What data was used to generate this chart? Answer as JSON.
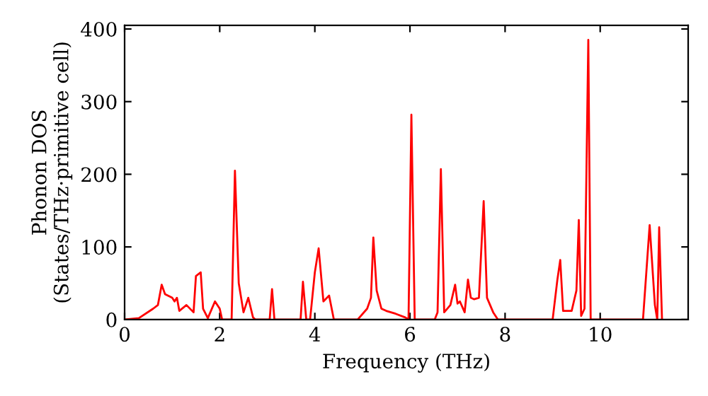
{
  "chart_data": {
    "type": "line",
    "xlabel": "Frequency (THz)",
    "ylabel": "Phonon DOS\n(States/THz·primitive cell)",
    "xlim": [
      0,
      11.85
    ],
    "ylim": [
      0,
      405
    ],
    "xticks": [
      0,
      2,
      4,
      6,
      8,
      10
    ],
    "yticks": [
      0,
      100,
      200,
      300,
      400
    ],
    "grid": false,
    "marker": "none",
    "line_style": "solid",
    "series": [
      {
        "color": "#ff0000",
        "x": [
          0,
          0.3,
          0.6,
          0.7,
          0.78,
          0.85,
          1.0,
          1.05,
          1.1,
          1.15,
          1.3,
          1.45,
          1.5,
          1.6,
          1.65,
          1.75,
          1.9,
          2.0,
          2.05,
          2.25,
          2.32,
          2.4,
          2.5,
          2.6,
          2.7,
          2.75,
          3.05,
          3.1,
          3.15,
          3.7,
          3.75,
          3.82,
          3.9,
          4.0,
          4.08,
          4.18,
          4.3,
          4.4,
          4.9,
          5.1,
          5.18,
          5.23,
          5.3,
          5.4,
          5.5,
          5.7,
          5.9,
          5.97,
          6.03,
          6.1,
          6.52,
          6.58,
          6.65,
          6.72,
          6.85,
          6.95,
          7.0,
          7.05,
          7.15,
          7.22,
          7.28,
          7.35,
          7.45,
          7.55,
          7.62,
          7.75,
          7.85,
          9.0,
          9.1,
          9.16,
          9.22,
          9.4,
          9.5,
          9.55,
          9.6,
          9.67,
          9.75,
          9.8,
          10.9,
          11.04,
          11.15,
          11.2,
          11.24,
          11.3
        ],
        "values": [
          0,
          2,
          15,
          20,
          48,
          35,
          30,
          25,
          30,
          12,
          20,
          10,
          60,
          65,
          15,
          2,
          25,
          15,
          0,
          0,
          205,
          50,
          10,
          30,
          3,
          0,
          0,
          42,
          0,
          0,
          52,
          0,
          0,
          65,
          98,
          25,
          33,
          0,
          0,
          15,
          30,
          113,
          40,
          15,
          12,
          8,
          3,
          0,
          282,
          0,
          0,
          10,
          207,
          10,
          20,
          48,
          22,
          25,
          10,
          55,
          30,
          28,
          30,
          163,
          30,
          10,
          0,
          0,
          55,
          82,
          12,
          12,
          40,
          137,
          5,
          15,
          385,
          0,
          0,
          130,
          20,
          0,
          127,
          0
        ]
      }
    ]
  }
}
